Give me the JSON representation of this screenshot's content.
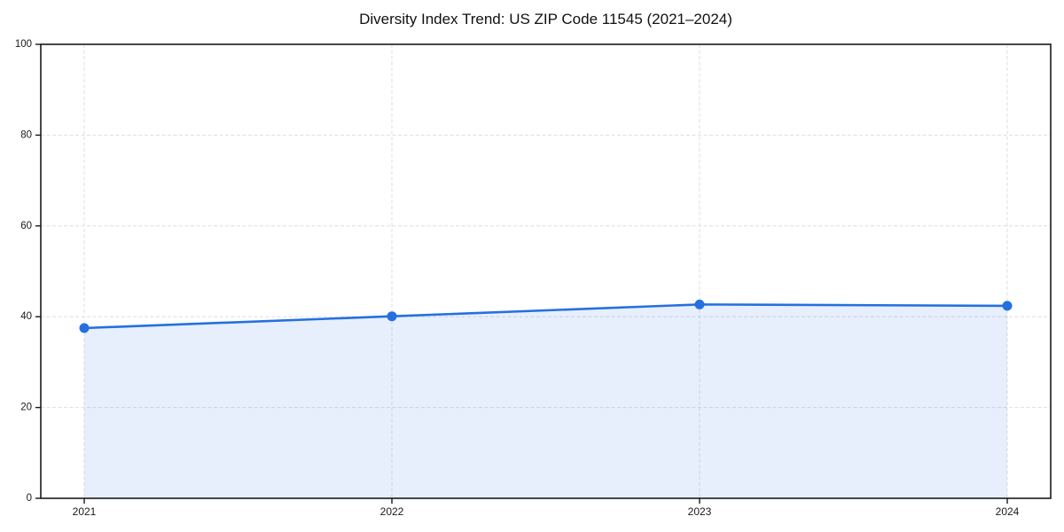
{
  "chart_data": {
    "type": "line",
    "title": "Diversity Index Trend: US ZIP Code 11545 (2021–2024)",
    "categories": [
      "2021",
      "2022",
      "2023",
      "2024"
    ],
    "x": [
      2021,
      2022,
      2023,
      2024
    ],
    "values": [
      37.5,
      40.1,
      42.7,
      42.4
    ],
    "xlabel": "",
    "ylabel": "",
    "ylim": [
      0,
      100
    ],
    "yticks": [
      0,
      20,
      40,
      60,
      80,
      100
    ],
    "grid": true,
    "grid_style": "dashed",
    "legend_position": "none",
    "area_fill": true,
    "marker": "circle",
    "colors": {
      "line": "#2470e0",
      "marker": "#2470e0",
      "fill": "#2470e0",
      "fill_opacity": 0.11,
      "grid": "#dedede",
      "spine": "#1a1a1a",
      "tick_label": "#1a1a1a",
      "title": "#111111",
      "background": "#ffffff"
    }
  }
}
